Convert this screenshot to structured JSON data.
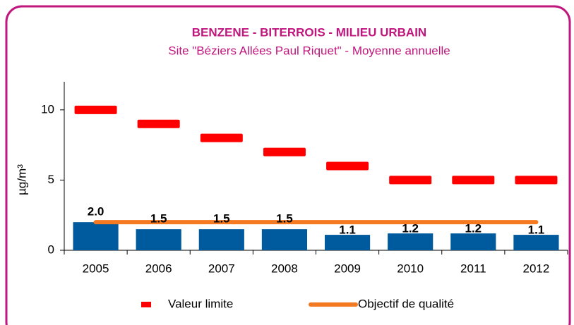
{
  "chart_data": {
    "type": "bar",
    "title": "BENZENE - BITERROIS - MILIEU URBAIN",
    "subtitle": "Site \"Béziers Allées Paul Riquet\" - Moyenne annuelle",
    "y_label": "µg/m³",
    "categories": [
      "2005",
      "2006",
      "2007",
      "2008",
      "2009",
      "2010",
      "2011",
      "2012"
    ],
    "values": [
      2.0,
      1.5,
      1.5,
      1.5,
      1.1,
      1.2,
      1.2,
      1.1
    ],
    "value_labels": [
      "2.0",
      "1.5",
      "1.5",
      "1.5",
      "1.1",
      "1.2",
      "1.2",
      "1.1"
    ],
    "color": "#005a9e",
    "series": [
      {
        "name": "Valeur limite",
        "color": "#ff0000",
        "style": "dash",
        "values": [
          10,
          9,
          8,
          7,
          6,
          5,
          5,
          5
        ]
      },
      {
        "name": "Objectif de qualité",
        "color": "#f47920",
        "style": "line",
        "values": [
          2,
          2,
          2,
          2,
          2,
          2,
          2,
          2
        ]
      }
    ],
    "ylim": [
      0,
      12
    ],
    "yticks": [
      0,
      5,
      10
    ],
    "grid": false,
    "legend": "bottom"
  }
}
